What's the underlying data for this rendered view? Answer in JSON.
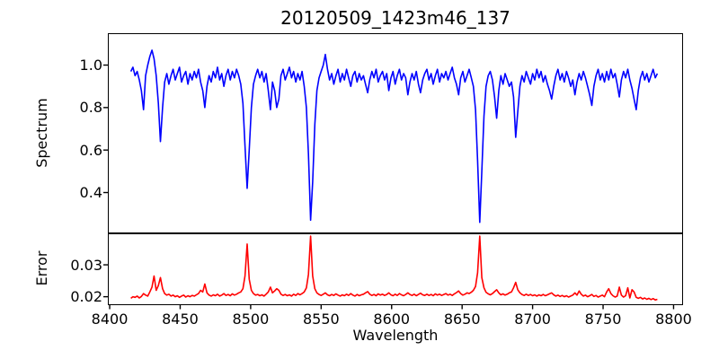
{
  "figure_title": "20120509_1423m46_137",
  "chart_data": [
    {
      "type": "line",
      "series": "spectrum",
      "title": "20120509_1423m46_137",
      "ylabel": "Spectrum",
      "xlabel": "",
      "color": "#0000ff",
      "grid": false,
      "legend": null,
      "xlim": [
        8398.7,
        8806.4
      ],
      "ylim": [
        0.21,
        1.15
      ],
      "ytick_values": [
        0.4,
        0.6,
        0.8,
        1.0
      ],
      "ytick_labels": [
        "0.4",
        "0.6",
        "0.8",
        "1.0"
      ],
      "xtick_values": [],
      "xtick_labels": [],
      "x_start": 8415,
      "x_step": 1.5,
      "values": [
        0.97,
        0.99,
        0.95,
        0.97,
        0.93,
        0.88,
        0.79,
        0.95,
        1.0,
        1.04,
        1.07,
        1.03,
        0.95,
        0.82,
        0.64,
        0.8,
        0.92,
        0.96,
        0.91,
        0.95,
        0.98,
        0.93,
        0.96,
        0.99,
        0.92,
        0.95,
        0.97,
        0.91,
        0.96,
        0.93,
        0.97,
        0.94,
        0.98,
        0.92,
        0.88,
        0.8,
        0.9,
        0.95,
        0.92,
        0.97,
        0.94,
        0.99,
        0.93,
        0.96,
        0.9,
        0.95,
        0.98,
        0.93,
        0.97,
        0.94,
        0.98,
        0.95,
        0.91,
        0.82,
        0.62,
        0.42,
        0.6,
        0.8,
        0.91,
        0.95,
        0.98,
        0.94,
        0.97,
        0.92,
        0.96,
        0.88,
        0.79,
        0.92,
        0.88,
        0.8,
        0.84,
        0.95,
        0.98,
        0.93,
        0.96,
        0.99,
        0.94,
        0.97,
        0.92,
        0.96,
        0.93,
        0.97,
        0.9,
        0.8,
        0.58,
        0.27,
        0.45,
        0.72,
        0.88,
        0.94,
        0.97,
        1.0,
        1.05,
        0.98,
        0.93,
        0.96,
        0.91,
        0.95,
        0.98,
        0.92,
        0.96,
        0.93,
        0.98,
        0.94,
        0.9,
        0.95,
        0.97,
        0.92,
        0.96,
        0.93,
        0.95,
        0.91,
        0.87,
        0.93,
        0.97,
        0.94,
        0.98,
        0.92,
        0.95,
        0.97,
        0.93,
        0.96,
        0.88,
        0.94,
        0.97,
        0.91,
        0.95,
        0.98,
        0.93,
        0.96,
        0.94,
        0.86,
        0.92,
        0.96,
        0.93,
        0.97,
        0.91,
        0.87,
        0.93,
        0.96,
        0.98,
        0.93,
        0.96,
        0.91,
        0.95,
        0.98,
        0.92,
        0.96,
        0.94,
        0.97,
        0.93,
        0.96,
        0.99,
        0.94,
        0.91,
        0.86,
        0.94,
        0.97,
        0.92,
        0.95,
        0.98,
        0.94,
        0.9,
        0.79,
        0.55,
        0.26,
        0.5,
        0.76,
        0.9,
        0.95,
        0.97,
        0.93,
        0.85,
        0.75,
        0.88,
        0.95,
        0.91,
        0.96,
        0.93,
        0.9,
        0.92,
        0.85,
        0.66,
        0.78,
        0.9,
        0.95,
        0.92,
        0.97,
        0.94,
        0.91,
        0.96,
        0.93,
        0.98,
        0.94,
        0.97,
        0.92,
        0.95,
        0.91,
        0.88,
        0.84,
        0.9,
        0.95,
        0.98,
        0.93,
        0.96,
        0.92,
        0.97,
        0.94,
        0.9,
        0.93,
        0.86,
        0.92,
        0.96,
        0.93,
        0.97,
        0.94,
        0.9,
        0.86,
        0.81,
        0.9,
        0.95,
        0.98,
        0.93,
        0.96,
        0.92,
        0.97,
        0.93,
        0.98,
        0.94,
        0.96,
        0.91,
        0.85,
        0.93,
        0.97,
        0.94,
        0.98,
        0.93,
        0.89,
        0.84,
        0.79,
        0.88,
        0.94,
        0.97,
        0.93,
        0.96,
        0.92,
        0.95,
        0.98,
        0.94,
        0.96
      ]
    },
    {
      "type": "line",
      "series": "error",
      "title": "",
      "ylabel": "Error",
      "xlabel": "Wavelength",
      "color": "#ff0000",
      "grid": false,
      "legend": null,
      "xlim": [
        8398.7,
        8806.4
      ],
      "ylim": [
        0.0175,
        0.04
      ],
      "ytick_values": [
        0.02,
        0.03
      ],
      "ytick_labels": [
        "0.02",
        "0.03"
      ],
      "xtick_values": [
        8400,
        8450,
        8500,
        8550,
        8600,
        8650,
        8700,
        8750,
        8800
      ],
      "xtick_labels": [
        "8400",
        "8450",
        "8500",
        "8550",
        "8600",
        "8650",
        "8700",
        "8750",
        "8800"
      ],
      "x_start": 8415,
      "x_step": 1.5,
      "values": [
        0.0195,
        0.02,
        0.0198,
        0.0202,
        0.0196,
        0.0201,
        0.021,
        0.0205,
        0.0202,
        0.0215,
        0.023,
        0.0265,
        0.022,
        0.0235,
        0.026,
        0.0225,
        0.021,
        0.0205,
        0.0208,
        0.0202,
        0.0205,
        0.02,
        0.0203,
        0.0198,
        0.0202,
        0.0205,
        0.0199,
        0.0203,
        0.02,
        0.0204,
        0.0202,
        0.0206,
        0.021,
        0.022,
        0.0215,
        0.024,
        0.0212,
        0.0205,
        0.0202,
        0.0206,
        0.0203,
        0.0208,
        0.0202,
        0.0205,
        0.021,
        0.0204,
        0.0207,
        0.0203,
        0.0209,
        0.0205,
        0.0208,
        0.0212,
        0.0215,
        0.0225,
        0.0265,
        0.0365,
        0.0255,
        0.022,
        0.021,
        0.0205,
        0.0207,
        0.0203,
        0.0206,
        0.0202,
        0.0208,
        0.0215,
        0.023,
        0.0212,
        0.0218,
        0.0225,
        0.022,
        0.0208,
        0.0204,
        0.0207,
        0.0203,
        0.0206,
        0.0202,
        0.0208,
        0.0204,
        0.021,
        0.0206,
        0.021,
        0.0215,
        0.0228,
        0.027,
        0.039,
        0.0265,
        0.0225,
        0.0212,
        0.0207,
        0.0204,
        0.0208,
        0.0212,
        0.0206,
        0.0203,
        0.0207,
        0.0204,
        0.0209,
        0.0205,
        0.0202,
        0.0206,
        0.0203,
        0.0208,
        0.0204,
        0.021,
        0.0205,
        0.0202,
        0.0207,
        0.0203,
        0.0206,
        0.0208,
        0.0212,
        0.0216,
        0.0208,
        0.0204,
        0.0207,
        0.0203,
        0.0209,
        0.0205,
        0.0208,
        0.0204,
        0.0207,
        0.0212,
        0.0206,
        0.0203,
        0.0208,
        0.0204,
        0.021,
        0.0206,
        0.0203,
        0.0207,
        0.0212,
        0.0207,
        0.0204,
        0.0208,
        0.0203,
        0.0207,
        0.0211,
        0.0206,
        0.0204,
        0.0208,
        0.0204,
        0.0207,
        0.0203,
        0.0209,
        0.0205,
        0.0208,
        0.0204,
        0.0207,
        0.021,
        0.0205,
        0.0208,
        0.0204,
        0.0209,
        0.0213,
        0.0218,
        0.021,
        0.0205,
        0.0208,
        0.0212,
        0.021,
        0.0214,
        0.022,
        0.0232,
        0.0275,
        0.039,
        0.026,
        0.0228,
        0.0214,
        0.0209,
        0.0206,
        0.021,
        0.0216,
        0.0222,
        0.0212,
        0.0206,
        0.0209,
        0.0205,
        0.0208,
        0.0212,
        0.0215,
        0.0228,
        0.0245,
        0.0222,
        0.0212,
        0.0207,
        0.0204,
        0.0208,
        0.0204,
        0.0207,
        0.0203,
        0.0206,
        0.0202,
        0.0206,
        0.0203,
        0.0207,
        0.0203,
        0.0206,
        0.0209,
        0.0212,
        0.0206,
        0.0202,
        0.0205,
        0.0201,
        0.0204,
        0.02,
        0.0203,
        0.0199,
        0.0202,
        0.0205,
        0.0212,
        0.0205,
        0.0218,
        0.0208,
        0.0202,
        0.0205,
        0.02,
        0.0203,
        0.0207,
        0.0201,
        0.0204,
        0.0199,
        0.0202,
        0.0205,
        0.02,
        0.0215,
        0.0225,
        0.021,
        0.0203,
        0.0199,
        0.0202,
        0.023,
        0.0205,
        0.0199,
        0.0203,
        0.0228,
        0.0196,
        0.0222,
        0.0215,
        0.0198,
        0.0195,
        0.0198,
        0.0193,
        0.0196,
        0.0192,
        0.0195,
        0.0191,
        0.0194,
        0.019,
        0.0192
      ]
    }
  ]
}
